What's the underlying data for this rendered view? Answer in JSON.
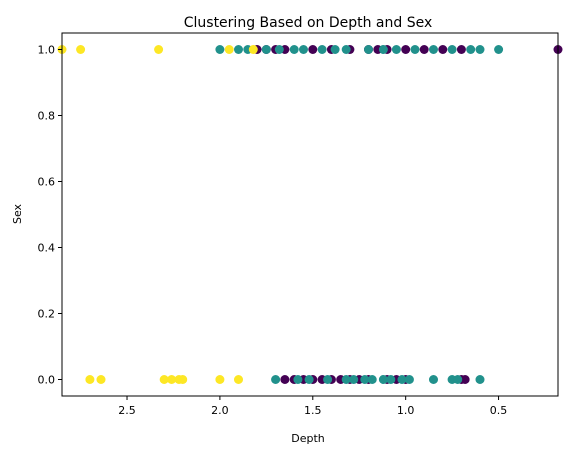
{
  "chart_data": {
    "type": "scatter",
    "title": "Clustering Based on Depth and Sex",
    "xlabel": "Depth",
    "ylabel": "Sex",
    "xlim": [
      2.85,
      0.18
    ],
    "ylim": [
      -0.05,
      1.05
    ],
    "x_inverted": true,
    "xticks": [
      2.5,
      2.0,
      1.5,
      1.0,
      0.5
    ],
    "xtick_labels": [
      "2.5",
      "2.0",
      "1.5",
      "1.0",
      "0.5"
    ],
    "yticks": [
      0.0,
      0.2,
      0.4,
      0.6,
      0.8,
      1.0
    ],
    "ytick_labels": [
      "0.0",
      "0.2",
      "0.4",
      "0.6",
      "0.8",
      "1.0"
    ],
    "grid": false,
    "legend": "none",
    "clusters": [
      {
        "color": "#440154",
        "points": [
          [
            1.8,
            1
          ],
          [
            1.75,
            1
          ],
          [
            1.7,
            1
          ],
          [
            1.65,
            1
          ],
          [
            1.5,
            1
          ],
          [
            1.4,
            1
          ],
          [
            1.3,
            1
          ],
          [
            1.2,
            1
          ],
          [
            1.15,
            1
          ],
          [
            1.1,
            1
          ],
          [
            1.0,
            1
          ],
          [
            0.9,
            1
          ],
          [
            0.8,
            1
          ],
          [
            0.7,
            1
          ],
          [
            0.18,
            1
          ],
          [
            1.65,
            0
          ],
          [
            1.6,
            0
          ],
          [
            1.55,
            0
          ],
          [
            1.5,
            0
          ],
          [
            1.45,
            0
          ],
          [
            1.4,
            0
          ],
          [
            1.35,
            0
          ],
          [
            1.3,
            0
          ],
          [
            1.25,
            0
          ],
          [
            1.2,
            0
          ],
          [
            1.1,
            0
          ],
          [
            1.05,
            0
          ],
          [
            1.0,
            0
          ],
          [
            0.7,
            0
          ],
          [
            0.68,
            0
          ]
        ]
      },
      {
        "color": "#21918c",
        "points": [
          [
            2.0,
            1
          ],
          [
            1.9,
            1
          ],
          [
            1.85,
            1
          ],
          [
            1.75,
            1
          ],
          [
            1.68,
            1
          ],
          [
            1.6,
            1
          ],
          [
            1.55,
            1
          ],
          [
            1.45,
            1
          ],
          [
            1.38,
            1
          ],
          [
            1.32,
            1
          ],
          [
            1.2,
            1
          ],
          [
            1.12,
            1
          ],
          [
            1.05,
            1
          ],
          [
            0.95,
            1
          ],
          [
            0.85,
            1
          ],
          [
            0.75,
            1
          ],
          [
            0.65,
            1
          ],
          [
            0.6,
            1
          ],
          [
            0.5,
            1
          ],
          [
            1.7,
            0
          ],
          [
            1.58,
            0
          ],
          [
            1.52,
            0
          ],
          [
            1.42,
            0
          ],
          [
            1.32,
            0
          ],
          [
            1.28,
            0
          ],
          [
            1.22,
            0
          ],
          [
            1.18,
            0
          ],
          [
            1.12,
            0
          ],
          [
            1.08,
            0
          ],
          [
            1.02,
            0
          ],
          [
            0.98,
            0
          ],
          [
            0.85,
            0
          ],
          [
            0.75,
            0
          ],
          [
            0.72,
            0
          ],
          [
            0.6,
            0
          ]
        ]
      },
      {
        "color": "#fde725",
        "points": [
          [
            2.85,
            1
          ],
          [
            2.75,
            1
          ],
          [
            2.33,
            1
          ],
          [
            1.95,
            1
          ],
          [
            1.82,
            1
          ],
          [
            2.7,
            0
          ],
          [
            2.64,
            0
          ],
          [
            2.3,
            0
          ],
          [
            2.26,
            0
          ],
          [
            2.22,
            0
          ],
          [
            2.2,
            0
          ],
          [
            2.0,
            0
          ],
          [
            1.9,
            0
          ]
        ]
      }
    ]
  }
}
